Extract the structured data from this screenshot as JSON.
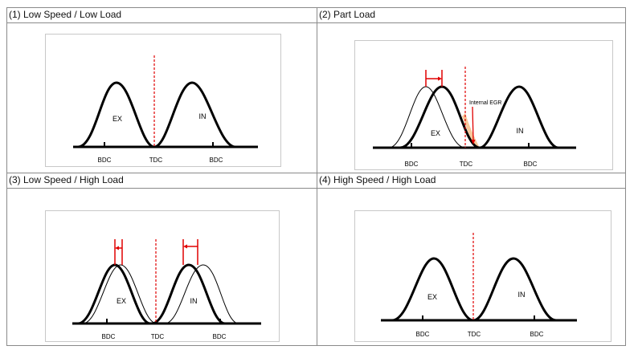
{
  "panels": {
    "p1": {
      "title": "(1) Low Speed / Low Load",
      "ex": "EX",
      "in": "IN",
      "bdc_left": "BDC",
      "tdc": "TDC",
      "bdc_right": "BDC"
    },
    "p2": {
      "title": "(2) Part Load",
      "ex": "EX",
      "in": "IN",
      "bdc_left": "BDC",
      "tdc": "TDC",
      "bdc_right": "BDC",
      "egr_label": "Internal EGR"
    },
    "p3": {
      "title": "(3) Low Speed / High Load",
      "ex": "EX",
      "in": "IN",
      "bdc_left": "BDC",
      "tdc": "TDC",
      "bdc_right": "BDC"
    },
    "p4": {
      "title": "(4) High Speed / High Load",
      "ex": "EX",
      "in": "IN",
      "bdc_left": "BDC",
      "tdc": "TDC",
      "bdc_right": "BDC"
    }
  },
  "colors": {
    "curve": "#000000",
    "tdc_line": "#e00000",
    "shift_arrow": "#e00000",
    "egr_fill": "#f6c89a"
  }
}
